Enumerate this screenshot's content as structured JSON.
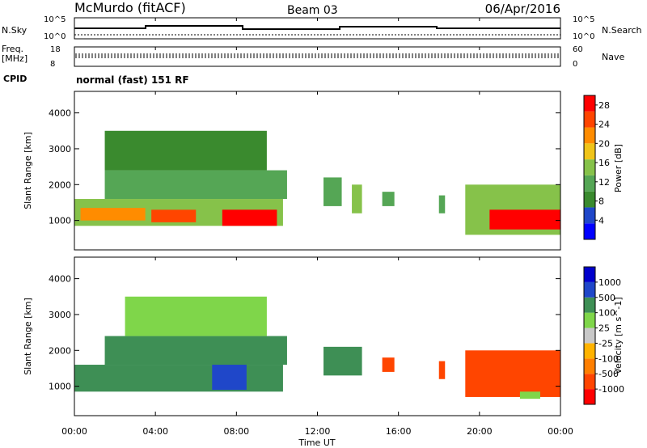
{
  "header": {
    "station": "McMurdo (fitACF)",
    "beam": "Beam 03",
    "date": "06/Apr/2016"
  },
  "side_labels": {
    "nsky": "N.Sky",
    "freq": "Freq.",
    "freq_unit": "[MHz]",
    "cpid": "CPID",
    "nsearch": "N.Search",
    "nave": "Nave"
  },
  "noise_axis": {
    "left_ticks": [
      "10^5",
      "10^0"
    ],
    "right_ticks": [
      "10^5",
      "10^0"
    ]
  },
  "freq_axis": {
    "left_ticks": [
      "18",
      "8"
    ],
    "right_ticks": [
      "60",
      "0"
    ]
  },
  "cpid_text": "normal (fast) 151 RF",
  "x_axis": {
    "title": "Time UT",
    "ticks": [
      "00:00",
      "04:00",
      "08:00",
      "12:00",
      "16:00",
      "20:00",
      "00:00"
    ]
  },
  "colors": {
    "power": [
      "#0000ff",
      "#1f47c9",
      "#3a8a2e",
      "#55a655",
      "#86c24a",
      "#f0c419",
      "#ff8c00",
      "#ff4500",
      "#ff0000"
    ],
    "velocity": [
      "#ff0000",
      "#ff4500",
      "#ff7f00",
      "#ffb300",
      "#c8c8c8",
      "#7fd64a",
      "#3e8f55",
      "#1f47c9",
      "#0000cc"
    ]
  },
  "chart_data": [
    {
      "type": "heatmap",
      "panel": "power",
      "ylabel": "Slant Range [km]",
      "yticks": [
        1000,
        2000,
        3000,
        4000
      ],
      "ylim": [
        180,
        4600
      ],
      "xlim": [
        0,
        24
      ],
      "colorbar": {
        "label": "Power [dB]",
        "ticks": [
          "4",
          "8",
          "12",
          "16",
          "20",
          "24",
          "28"
        ],
        "range": [
          0,
          30
        ]
      },
      "regions": [
        {
          "x": [
            0.0,
            10.3
          ],
          "y": [
            850,
            1600
          ],
          "value": 14
        },
        {
          "x": [
            0.3,
            3.5
          ],
          "y": [
            1000,
            1350
          ],
          "value": 22
        },
        {
          "x": [
            3.8,
            6.0
          ],
          "y": [
            950,
            1300
          ],
          "value": 24
        },
        {
          "x": [
            7.3,
            10.0
          ],
          "y": [
            850,
            1300
          ],
          "value": 28
        },
        {
          "x": [
            1.5,
            10.5
          ],
          "y": [
            1600,
            2400
          ],
          "value": 12
        },
        {
          "x": [
            1.5,
            9.5
          ],
          "y": [
            2400,
            3500
          ],
          "value": 8
        },
        {
          "x": [
            12.3,
            13.2
          ],
          "y": [
            1400,
            2200
          ],
          "value": 12
        },
        {
          "x": [
            13.7,
            14.2
          ],
          "y": [
            1200,
            2000
          ],
          "value": 14
        },
        {
          "x": [
            15.2,
            15.8
          ],
          "y": [
            1400,
            1800
          ],
          "value": 12
        },
        {
          "x": [
            18.0,
            18.3
          ],
          "y": [
            1200,
            1700
          ],
          "value": 12
        },
        {
          "x": [
            19.3,
            24.0
          ],
          "y": [
            600,
            2000
          ],
          "value": 14
        },
        {
          "x": [
            20.5,
            24.0
          ],
          "y": [
            750,
            1300
          ],
          "value": 28
        }
      ]
    },
    {
      "type": "heatmap",
      "panel": "velocity",
      "ylabel": "Slant Range [km]",
      "yticks": [
        1000,
        2000,
        3000,
        4000
      ],
      "ylim": [
        180,
        4600
      ],
      "xlim": [
        0,
        24
      ],
      "colorbar": {
        "label": "Velocity [m s^-1]",
        "ticks": [
          "1000",
          "500",
          "100",
          "25",
          "-25",
          "-100",
          "-500",
          "-1000"
        ]
      },
      "regions": [
        {
          "x": [
            0.0,
            10.3
          ],
          "y": [
            850,
            1600
          ],
          "value": 300
        },
        {
          "x": [
            6.8,
            8.5
          ],
          "y": [
            900,
            2000
          ],
          "value": 800
        },
        {
          "x": [
            1.5,
            10.5
          ],
          "y": [
            1600,
            2400
          ],
          "value": 300
        },
        {
          "x": [
            2.5,
            9.5
          ],
          "y": [
            2400,
            3500
          ],
          "value": 60
        },
        {
          "x": [
            12.3,
            14.2
          ],
          "y": [
            1300,
            2100
          ],
          "value": 300
        },
        {
          "x": [
            15.2,
            15.8
          ],
          "y": [
            1400,
            1800
          ],
          "value": -200
        },
        {
          "x": [
            18.0,
            18.3
          ],
          "y": [
            1200,
            1700
          ],
          "value": -200
        },
        {
          "x": [
            19.3,
            24.0
          ],
          "y": [
            700,
            2000
          ],
          "value": -200
        },
        {
          "x": [
            22.0,
            23.0
          ],
          "y": [
            650,
            850
          ],
          "value": 60
        }
      ]
    }
  ]
}
